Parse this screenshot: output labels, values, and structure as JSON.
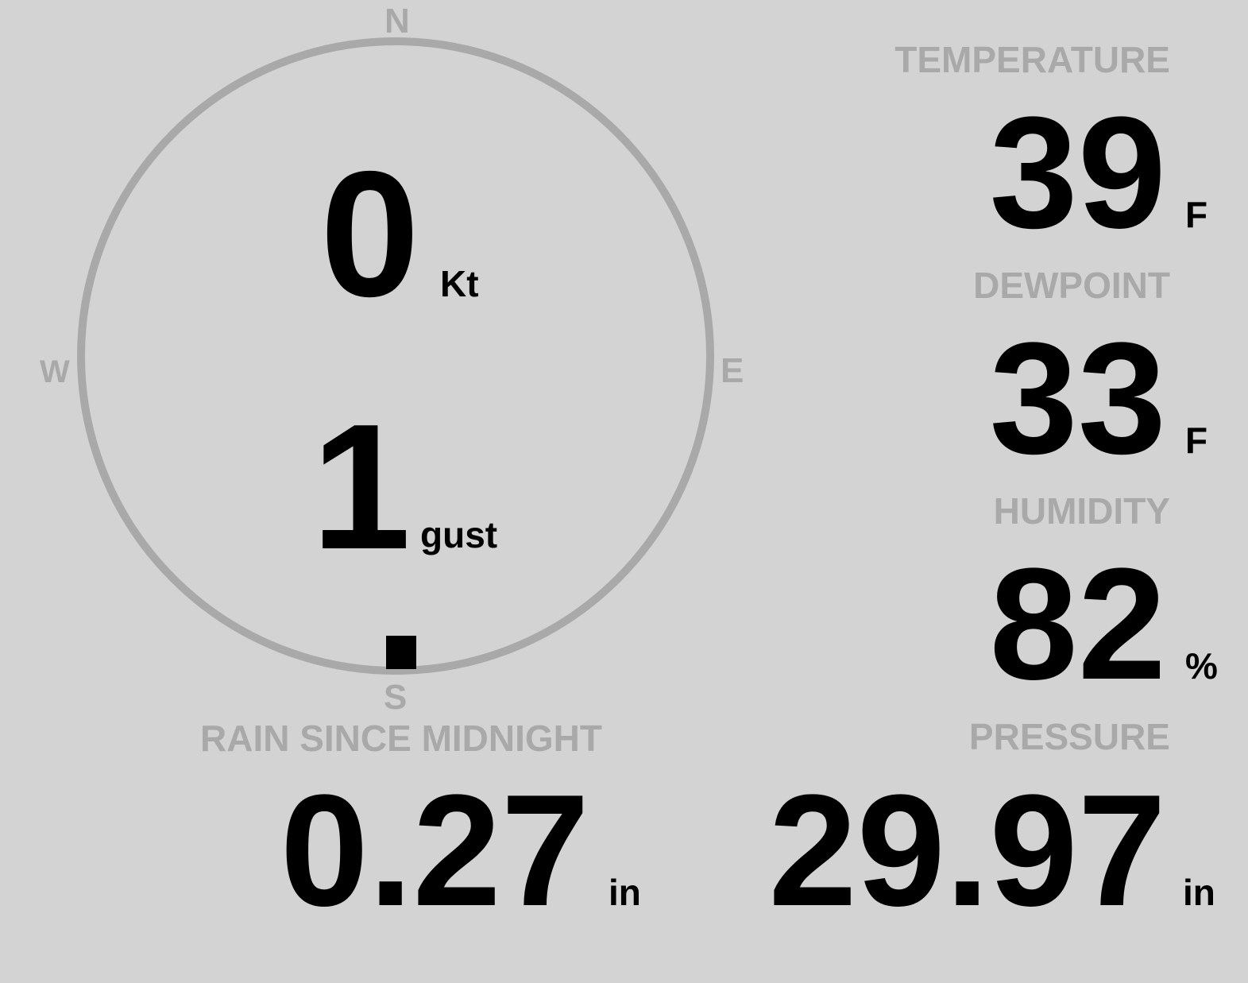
{
  "colors": {
    "background": "#d3d3d3",
    "muted": "#a9a9a9",
    "value": "#000000"
  },
  "compass": {
    "north": "N",
    "east": "E",
    "south": "S",
    "west": "W"
  },
  "wind": {
    "speed": "0",
    "speed_unit": "Kt",
    "gust": "1",
    "gust_unit": "gust",
    "direction_deg": 180
  },
  "temperature": {
    "label": "TEMPERATURE",
    "value": "39",
    "unit": "F"
  },
  "dewpoint": {
    "label": "DEWPOINT",
    "value": "33",
    "unit": "F"
  },
  "humidity": {
    "label": "HUMIDITY",
    "value": "82",
    "unit": "%"
  },
  "rain": {
    "label": "RAIN SINCE MIDNIGHT",
    "value": "0.27",
    "unit": "in"
  },
  "pressure": {
    "label": "PRESSURE",
    "value": "29.97",
    "unit": "in"
  }
}
